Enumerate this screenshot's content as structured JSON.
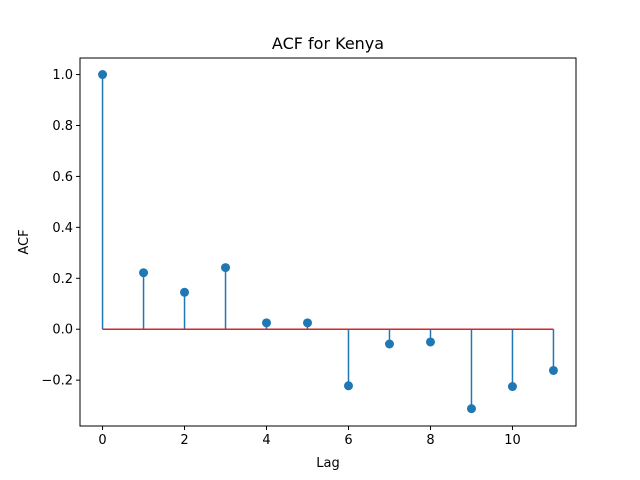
{
  "chart_data": {
    "type": "stem",
    "title": "ACF for Kenya",
    "xlabel": "Lag",
    "ylabel": "ACF",
    "x": [
      0,
      1,
      2,
      3,
      4,
      5,
      6,
      7,
      8,
      9,
      10,
      11
    ],
    "values": [
      1.0,
      0.222,
      0.145,
      0.242,
      0.025,
      0.025,
      -0.222,
      -0.058,
      -0.05,
      -0.312,
      -0.225,
      -0.162
    ],
    "xlim": [
      -0.55,
      11.55
    ],
    "ylim": [
      -0.38,
      1.065
    ],
    "xticks": [
      0,
      2,
      4,
      6,
      8,
      10
    ],
    "xtick_labels": [
      "0",
      "2",
      "4",
      "6",
      "8",
      "10"
    ],
    "yticks": [
      -0.2,
      0.0,
      0.2,
      0.4,
      0.6,
      0.8,
      1.0
    ],
    "ytick_labels": [
      "−0.2",
      "0.0",
      "0.2",
      "0.4",
      "0.6",
      "0.8",
      "1.0"
    ],
    "baseline": 0,
    "grid": false,
    "colors": {
      "stem": "#1f77b4",
      "marker": "#1f77b4",
      "baseline": "#d62728",
      "axes": "#000000"
    }
  }
}
